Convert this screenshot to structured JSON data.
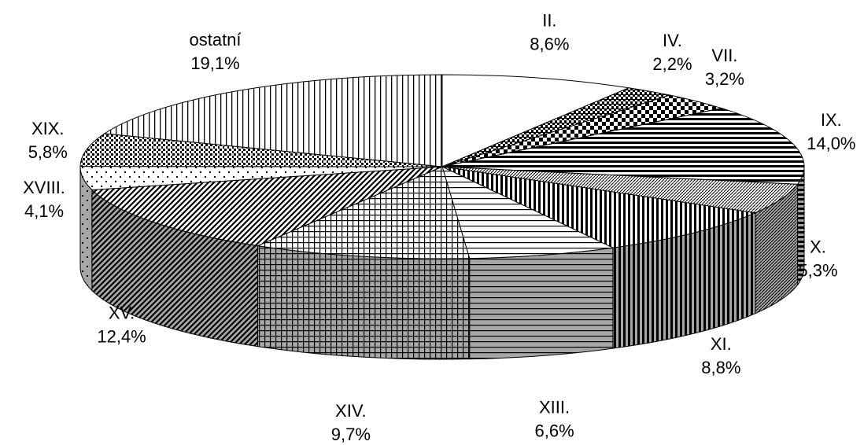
{
  "chart_data": {
    "type": "pie",
    "categories": [
      "II.",
      "IV.",
      "VII.",
      "IX.",
      "X.",
      "XI.",
      "XIII.",
      "XIV.",
      "XV.",
      "XVIII.",
      "XIX.",
      "ostatní"
    ],
    "values": [
      8.6,
      2.2,
      3.2,
      14.0,
      5.3,
      8.8,
      6.6,
      9.7,
      12.4,
      4.1,
      5.8,
      19.1
    ],
    "value_labels": [
      "8,6%",
      "2,2%",
      "3,2%",
      "14,0%",
      "5,3%",
      "8,8%",
      "6,6%",
      "9,7%",
      "12,4%",
      "4,1%",
      "5,8%",
      "19,1%"
    ]
  }
}
